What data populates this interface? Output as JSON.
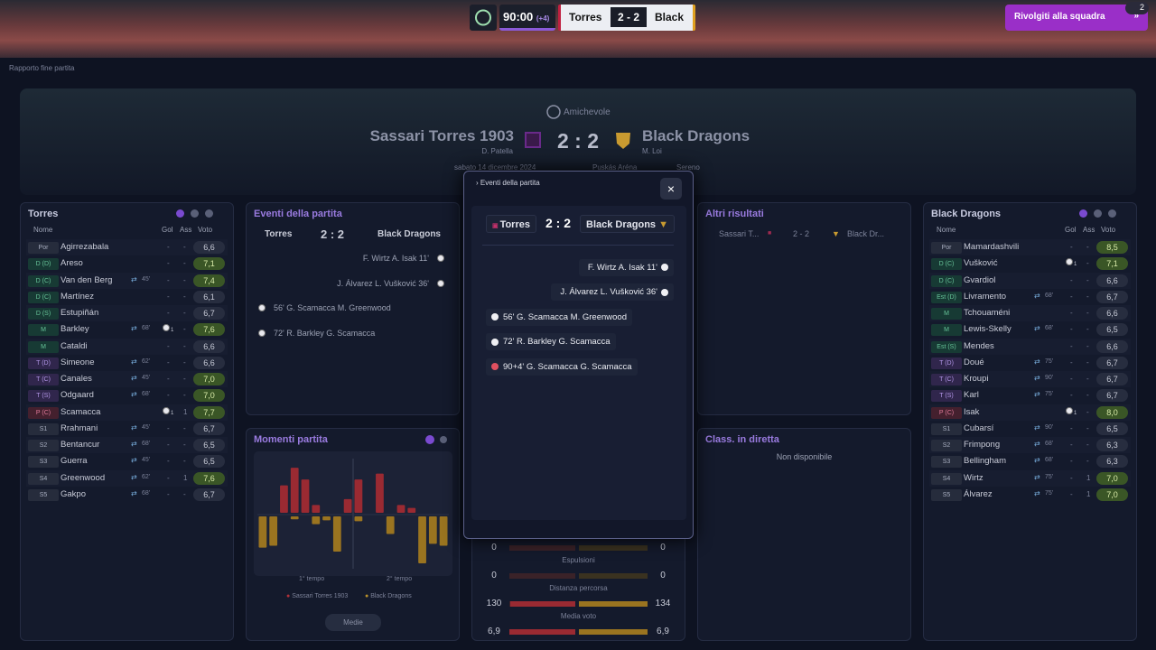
{
  "topbar": {
    "time": "90:00",
    "added_time": "(+4)",
    "home": "Torres",
    "score": "2 - 2",
    "away": "Black",
    "button": "Rivolgiti alla squadra",
    "badge": "2"
  },
  "breadcrumb": "Rapporto fine partita",
  "header": {
    "competition": "Amichevole",
    "home": "Sassari Torres 1903",
    "home_manager": "D. Patella",
    "score": "2 : 2",
    "away": "Black Dragons",
    "away_manager": "M. Loi",
    "date": "sabato 14 dicembre 2024",
    "stadium": "Puskás Aréna",
    "weather": "Sereno"
  },
  "home_panel": {
    "title": "Torres",
    "columns": [
      "Nome",
      "Gol",
      "Ass",
      "Voto"
    ],
    "rows": [
      {
        "pos": "Por",
        "name": "Agirrezabala",
        "sub": null,
        "gol": "-",
        "ass": "-",
        "voto": "6,6"
      },
      {
        "pos": "D (D)",
        "name": "Areso",
        "sub": null,
        "gol": "-",
        "ass": "-",
        "voto": "7,1"
      },
      {
        "pos": "D (C)",
        "name": "Van den Berg",
        "sub": "45'",
        "gol": "-",
        "ass": "-",
        "voto": "7,4"
      },
      {
        "pos": "D (C)",
        "name": "Martínez",
        "sub": null,
        "gol": "-",
        "ass": "-",
        "voto": "6,1"
      },
      {
        "pos": "D (S)",
        "name": "Estupiñán",
        "sub": null,
        "gol": "-",
        "ass": "-",
        "voto": "6,7"
      },
      {
        "pos": "M",
        "name": "Barkley",
        "sub": "68'",
        "gol": "1",
        "ass": "-",
        "voto": "7,6"
      },
      {
        "pos": "M",
        "name": "Cataldi",
        "sub": null,
        "gol": "-",
        "ass": "-",
        "voto": "6,6"
      },
      {
        "pos": "T (D)",
        "name": "Simeone",
        "sub": "62'",
        "gol": "-",
        "ass": "-",
        "voto": "6,6"
      },
      {
        "pos": "T (C)",
        "name": "Canales",
        "sub": "45'",
        "gol": "-",
        "ass": "-",
        "voto": "7,0"
      },
      {
        "pos": "T (S)",
        "name": "Odgaard",
        "sub": "68'",
        "gol": "-",
        "ass": "-",
        "voto": "7,0"
      },
      {
        "pos": "P (C)",
        "name": "Scamacca",
        "sub": null,
        "gol": "1",
        "ass": "1",
        "voto": "7,7"
      },
      {
        "pos": "S1",
        "name": "Rrahmani",
        "sub": "45'",
        "gol": "-",
        "ass": "-",
        "voto": "6,7"
      },
      {
        "pos": "S2",
        "name": "Bentancur",
        "sub": "68'",
        "gol": "-",
        "ass": "-",
        "voto": "6,5"
      },
      {
        "pos": "S3",
        "name": "Guerra",
        "sub": "45'",
        "gol": "-",
        "ass": "-",
        "voto": "6,5"
      },
      {
        "pos": "S4",
        "name": "Greenwood",
        "sub": "62'",
        "gol": "-",
        "ass": "1",
        "voto": "7,6"
      },
      {
        "pos": "S5",
        "name": "Gakpo",
        "sub": "68'",
        "gol": "-",
        "ass": "-",
        "voto": "6,7"
      }
    ]
  },
  "away_panel": {
    "title": "Black Dragons",
    "columns": [
      "Nome",
      "Gol",
      "Ass",
      "Voto"
    ],
    "rows": [
      {
        "pos": "Por",
        "name": "Mamardashvili",
        "sub": null,
        "gol": "-",
        "ass": "-",
        "voto": "8,5"
      },
      {
        "pos": "D (C)",
        "name": "Vušković",
        "sub": null,
        "gol": "1",
        "ass": "-",
        "voto": "7,1"
      },
      {
        "pos": "D (C)",
        "name": "Gvardiol",
        "sub": null,
        "gol": "-",
        "ass": "-",
        "voto": "6,6"
      },
      {
        "pos": "Est (D)",
        "name": "Livramento",
        "sub": "68'",
        "gol": "-",
        "ass": "-",
        "voto": "6,7"
      },
      {
        "pos": "M",
        "name": "Tchouaméni",
        "sub": null,
        "gol": "-",
        "ass": "-",
        "voto": "6,6"
      },
      {
        "pos": "M",
        "name": "Lewis-Skelly",
        "sub": "68'",
        "gol": "-",
        "ass": "-",
        "voto": "6,5"
      },
      {
        "pos": "Est (S)",
        "name": "Mendes",
        "sub": null,
        "gol": "-",
        "ass": "-",
        "voto": "6,6"
      },
      {
        "pos": "T (D)",
        "name": "Doué",
        "sub": "75'",
        "gol": "-",
        "ass": "-",
        "voto": "6,7"
      },
      {
        "pos": "T (C)",
        "name": "Kroupi",
        "sub": "90'",
        "gol": "-",
        "ass": "-",
        "voto": "6,7"
      },
      {
        "pos": "T (S)",
        "name": "Karl",
        "sub": "75'",
        "gol": "-",
        "ass": "-",
        "voto": "6,7"
      },
      {
        "pos": "P (C)",
        "name": "Isak",
        "sub": null,
        "gol": "1",
        "ass": "-",
        "voto": "8,0"
      },
      {
        "pos": "S1",
        "name": "Cubarsí",
        "sub": "90'",
        "gol": "-",
        "ass": "-",
        "voto": "6,5"
      },
      {
        "pos": "S2",
        "name": "Frimpong",
        "sub": "68'",
        "gol": "-",
        "ass": "-",
        "voto": "6,3"
      },
      {
        "pos": "S3",
        "name": "Bellingham",
        "sub": "68'",
        "gol": "-",
        "ass": "-",
        "voto": "6,3"
      },
      {
        "pos": "S4",
        "name": "Wirtz",
        "sub": "75'",
        "gol": "-",
        "ass": "1",
        "voto": "7,0"
      },
      {
        "pos": "S5",
        "name": "Álvarez",
        "sub": "75'",
        "gol": "-",
        "ass": "1",
        "voto": "7,0"
      }
    ]
  },
  "events": {
    "title": "Eventi della partita",
    "home": "Torres",
    "score": "2 : 2",
    "away": "Black Dragons",
    "items": [
      {
        "side": "away",
        "text": "F. Wirtz A. Isak 11'"
      },
      {
        "side": "away",
        "text": "J. Álvarez L. Vušković 36'"
      },
      {
        "side": "home",
        "text": "56' G. Scamacca M. Greenwood"
      },
      {
        "side": "home",
        "text": "72' R. Barkley G. Scamacca"
      },
      {
        "side": "home",
        "text": "90+4' G. Scamacca G. Scamacca"
      }
    ]
  },
  "moments": {
    "title": "Momenti partita",
    "first_half": "1° tempo",
    "second_half": "2° tempo",
    "legend": [
      "Sassari Torres 1903",
      "Black Dragons"
    ],
    "button": "Medie",
    "home": [
      0,
      0,
      28,
      46,
      34,
      8,
      0,
      0,
      14,
      34,
      0,
      40,
      0,
      8,
      5,
      0,
      0,
      0
    ],
    "away": [
      32,
      30,
      0,
      3,
      0,
      8,
      4,
      36,
      0,
      5,
      0,
      0,
      18,
      0,
      0,
      48,
      28,
      30
    ]
  },
  "stats": [
    {
      "label": null,
      "home": "0",
      "away": "0"
    },
    {
      "label": "Espulsioni",
      "home": "0",
      "away": "0"
    },
    {
      "label": "Distanza percorsa",
      "home": "130",
      "away": "134"
    },
    {
      "label": "Media voto",
      "home": "6,9",
      "away": "6,9"
    }
  ],
  "other_results": {
    "title": "Altri risultati",
    "home": "Sassari T...",
    "score": "2 - 2",
    "away": "Black Dr..."
  },
  "live_table": {
    "title": "Class. in diretta",
    "text": "Non disponibile"
  }
}
